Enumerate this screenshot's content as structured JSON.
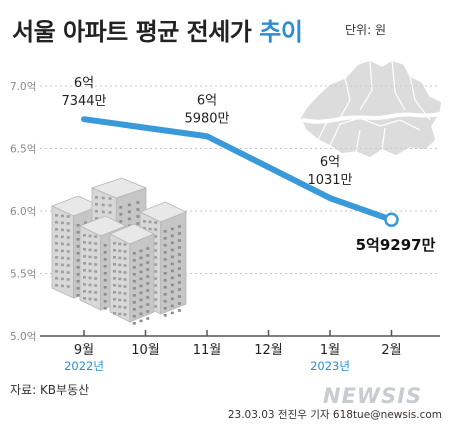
{
  "header": {
    "title_main": "서울 아파트 평균 전세가",
    "title_accent": "추이",
    "unit": "단위: 원"
  },
  "footer": {
    "source": "자료: KB부동산",
    "credit": "23.03.03 전진우 기자 618tue@newsis.com",
    "watermark": "NEWSIS"
  },
  "colors": {
    "line": "#3a9ad9",
    "accent": "#2a8fd0",
    "grid": "#c8c8c8",
    "map": "#dcdcdc",
    "buildings": "#d0d0d0"
  },
  "chart_data": {
    "type": "line",
    "title": "서울 아파트 평균 전세가 추이",
    "xlabel": "",
    "ylabel": "",
    "unit": "원",
    "categories": [
      "9월",
      "10월",
      "11월",
      "12월",
      "1월",
      "2월"
    ],
    "year_labels": [
      {
        "category": "9월",
        "label": "2022년"
      },
      {
        "category": "1월",
        "label": "2023년"
      }
    ],
    "series": [
      {
        "values": [
          673440000,
          null,
          659800000,
          null,
          610310000,
          592970000
        ],
        "data_labels": [
          [
            "6억",
            "7344만"
          ],
          null,
          [
            "6억",
            "5980만"
          ],
          null,
          [
            "6억",
            "1031만"
          ],
          [
            "5억9297만"
          ]
        ]
      }
    ],
    "yticks": [
      "7.0억",
      "6.5억",
      "6.0억",
      "5.5억",
      "5.0억"
    ],
    "ytick_values": [
      700000000,
      650000000,
      600000000,
      550000000,
      500000000
    ],
    "ylim": [
      500000000,
      700000000
    ],
    "grid": true,
    "legend": "none"
  }
}
